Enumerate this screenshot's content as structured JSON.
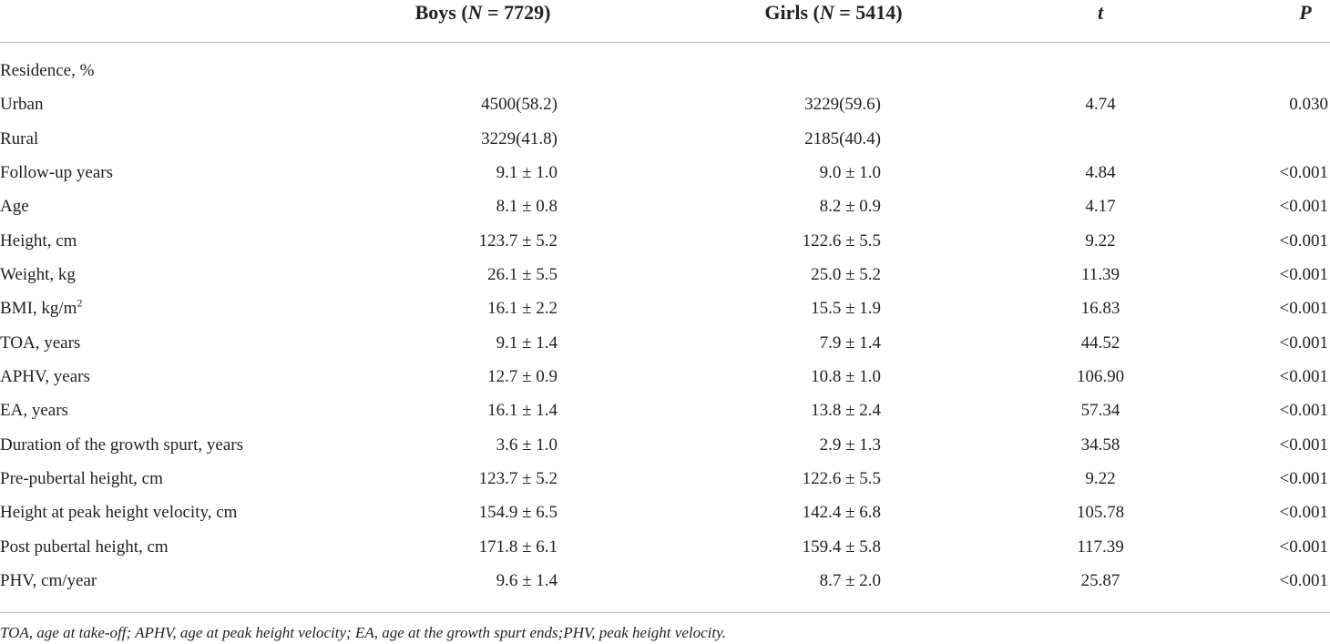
{
  "table": {
    "header": [
      [
        "Boys (",
        "N",
        " = 7729)"
      ],
      [
        "Girls (",
        "N",
        " = 5414)"
      ],
      [
        "t"
      ],
      [
        "P"
      ]
    ],
    "rows": [
      [
        "Residence, %"
      ],
      [
        "Urban",
        "4500(58.2)",
        "3229(59.6)",
        "4.74",
        "0.030"
      ],
      [
        "Rural",
        "3229(41.8)",
        "2185(40.4)"
      ],
      [
        "Follow-up years",
        "9.1 ± 1.0",
        "9.0 ± 1.0",
        "4.84",
        "<0.001"
      ],
      [
        "Age",
        "8.1 ± 0.8",
        "8.2 ± 0.9",
        "4.17",
        "<0.001"
      ],
      [
        "Height, cm",
        "123.7 ± 5.2",
        "122.6 ± 5.5",
        "9.22",
        "<0.001"
      ],
      [
        "Weight, kg",
        "26.1 ± 5.5",
        "25.0 ± 5.2",
        "11.39",
        "<0.001"
      ],
      [
        [
          "BMI, kg/m",
          "2"
        ],
        "16.1 ± 2.2",
        "15.5 ± 1.9",
        "16.83",
        "<0.001"
      ],
      [
        "TOA, years",
        "9.1 ± 1.4",
        "7.9 ± 1.4",
        "44.52",
        "<0.001"
      ],
      [
        "APHV, years",
        "12.7 ± 0.9",
        "10.8 ± 1.0",
        "106.90",
        "<0.001"
      ],
      [
        "EA, years",
        "16.1 ± 1.4",
        "13.8 ± 2.4",
        "57.34",
        "<0.001"
      ],
      [
        "Duration of the growth spurt, years",
        "3.6 ± 1.0",
        "2.9 ± 1.3",
        "34.58",
        "<0.001"
      ],
      [
        "Pre-pubertal height, cm",
        "123.7 ± 5.2",
        "122.6 ± 5.5",
        "9.22",
        "<0.001"
      ],
      [
        "Height at peak height velocity, cm",
        "154.9 ± 6.5",
        "142.4 ± 6.8",
        "105.78",
        "<0.001"
      ],
      [
        "Post pubertal height, cm",
        "171.8 ± 6.1",
        "159.4 ± 5.8",
        "117.39",
        "<0.001"
      ],
      [
        "PHV, cm/year",
        "9.6 ± 1.4",
        "8.7 ± 2.0",
        "25.87",
        "<0.001"
      ]
    ],
    "footnote": "TOA, age at take-off; APHV, age at peak height velocity; EA, age at the growth spurt ends;PHV, peak height velocity."
  }
}
